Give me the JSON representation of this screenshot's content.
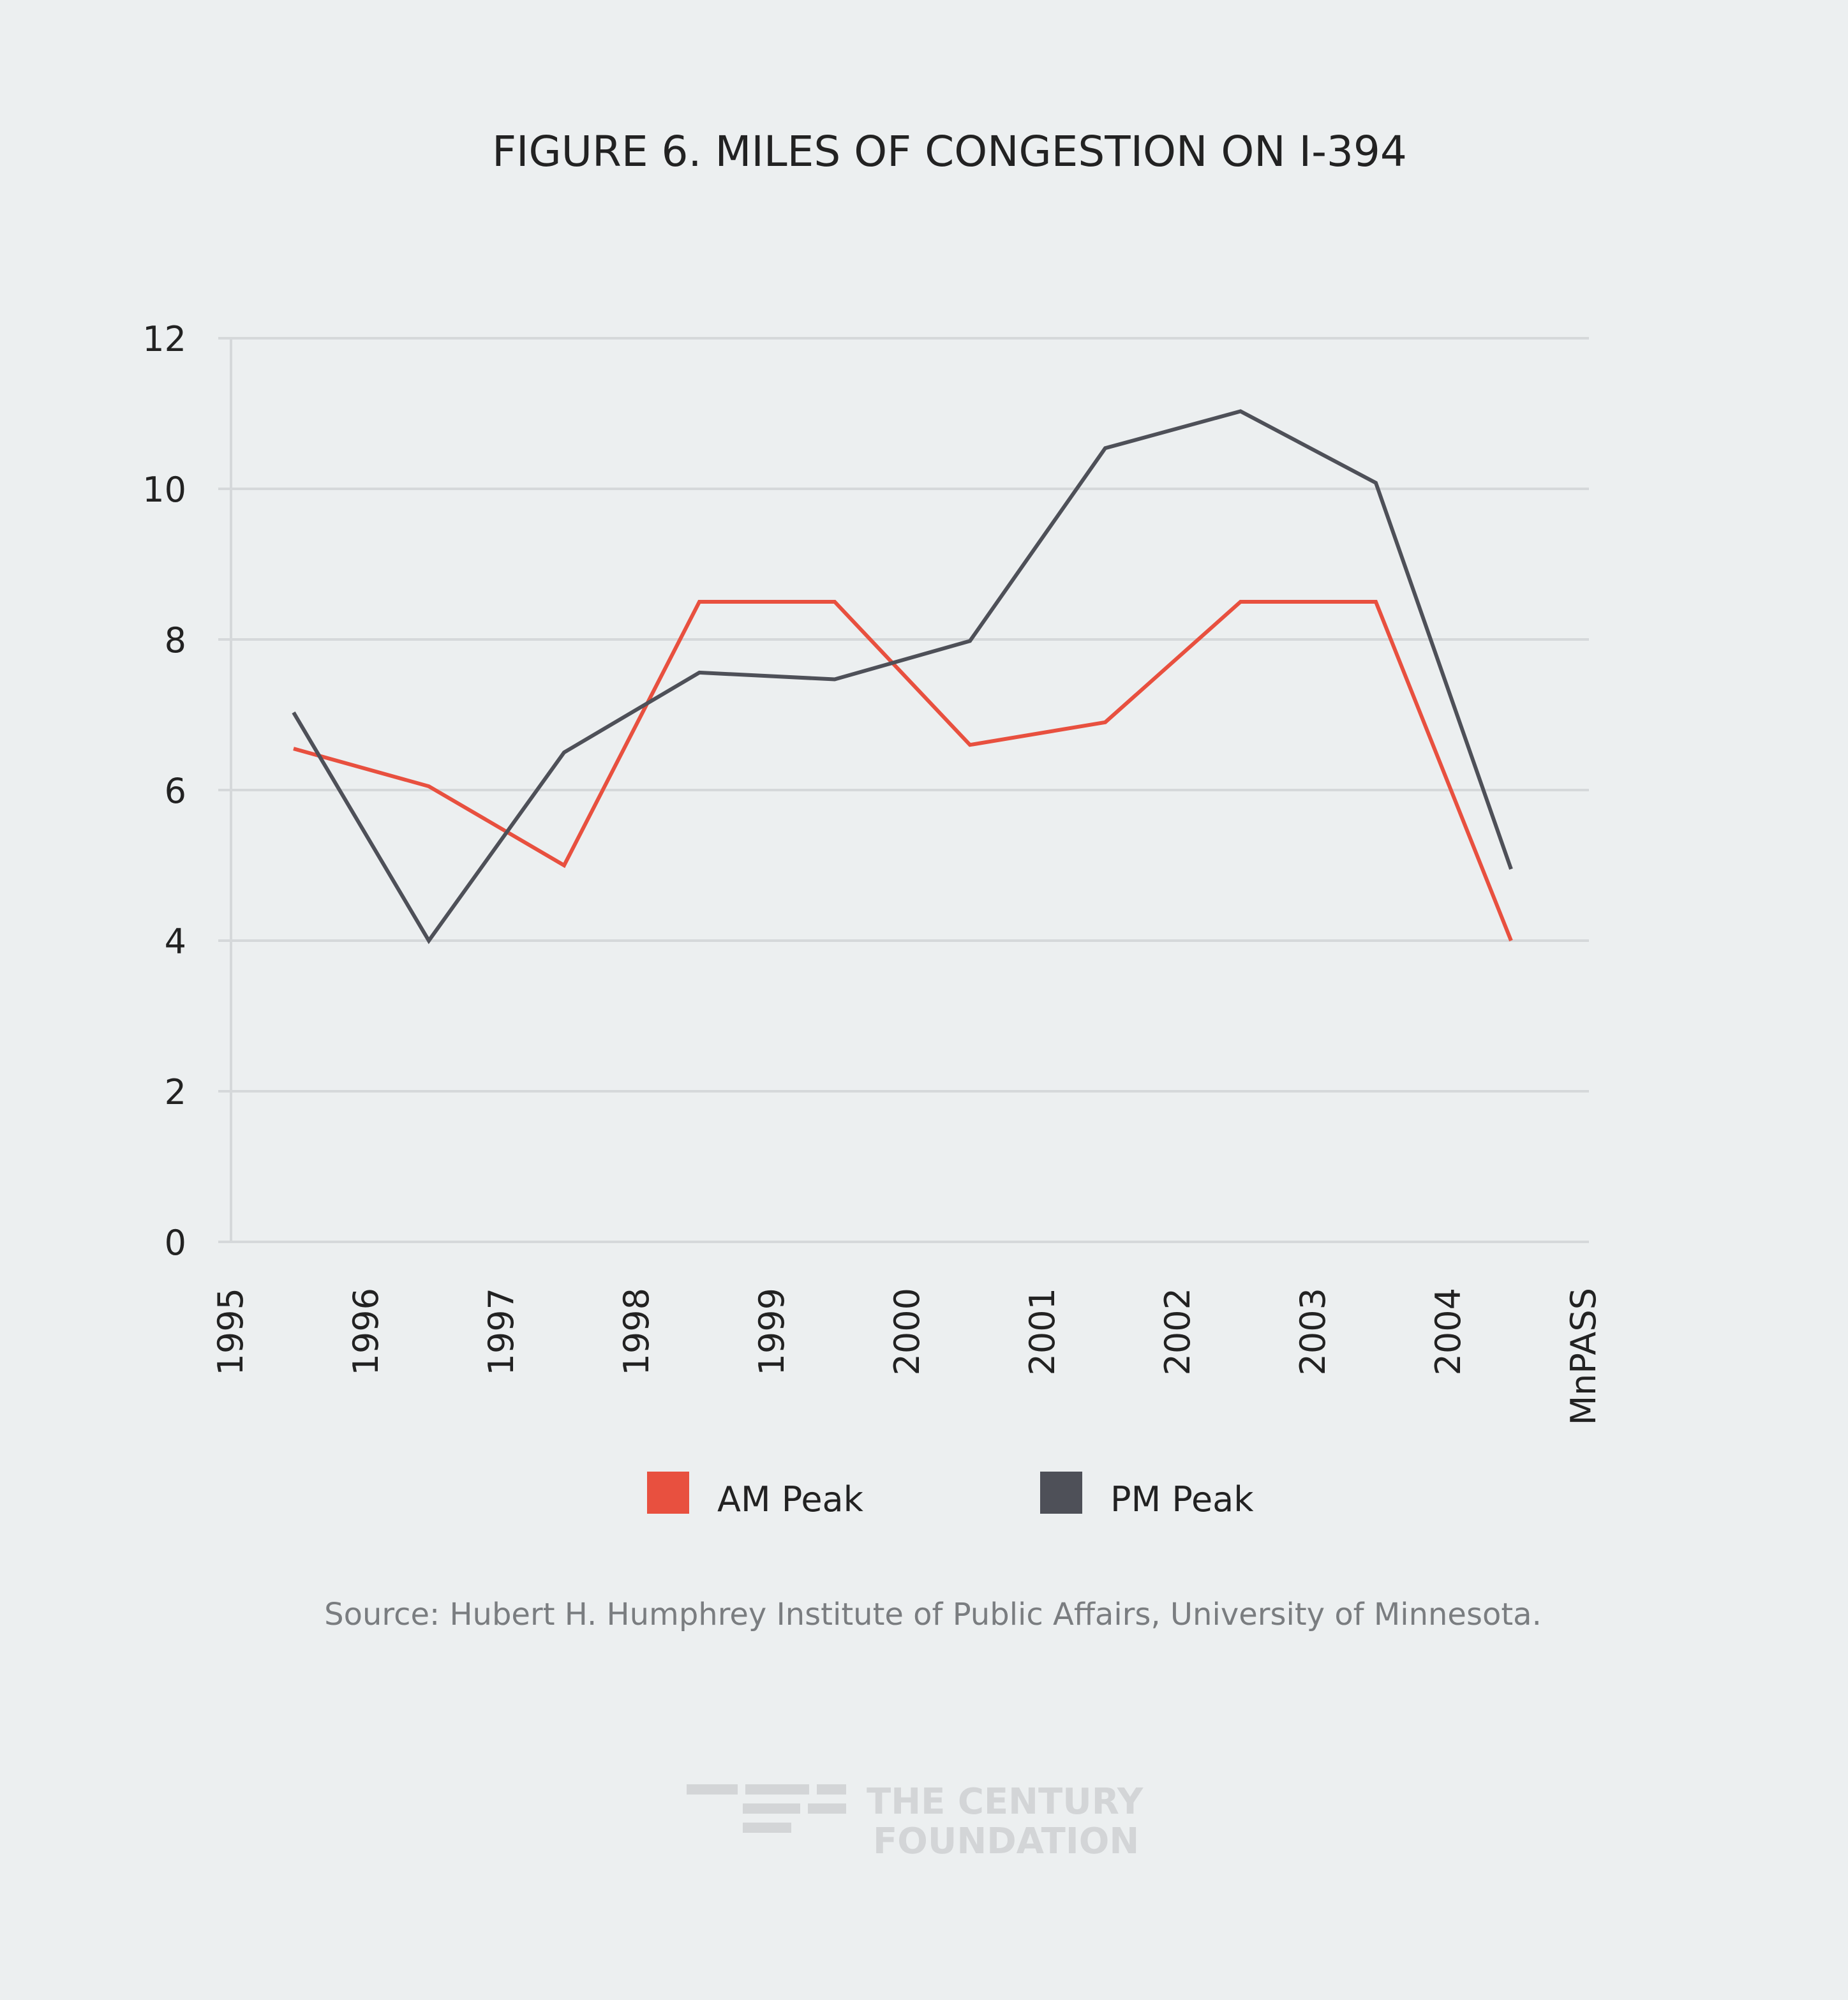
{
  "chart_data": {
    "type": "line",
    "title": "FIGURE 6. MILES OF CONGESTION ON I-394",
    "categories": [
      "1995",
      "1996",
      "1997",
      "1998",
      "1999",
      "2000",
      "2001",
      "2002",
      "2003",
      "2004",
      "MnPASS"
    ],
    "series": [
      {
        "name": "AM Peak",
        "color": "#e8503f",
        "values": [
          6.55,
          6.05,
          5.0,
          8.5,
          8.5,
          6.6,
          6.9,
          8.5,
          8.5,
          4.0,
          null
        ]
      },
      {
        "name": "PM Peak",
        "color": "#4e5058",
        "values": [
          7.03,
          4.0,
          6.5,
          7.56,
          7.47,
          7.98,
          10.54,
          11.03,
          10.08,
          4.95,
          null
        ]
      }
    ],
    "ylim": [
      0,
      12
    ],
    "yticks": [
      0,
      2,
      4,
      6,
      8,
      10,
      12
    ],
    "grid": true,
    "legend": "bottom",
    "source": "Source: Hubert H. Humphrey Institute of Public Affairs, University of Minnesota.",
    "logo": [
      "THE CENTURY",
      "FOUNDATION"
    ]
  }
}
